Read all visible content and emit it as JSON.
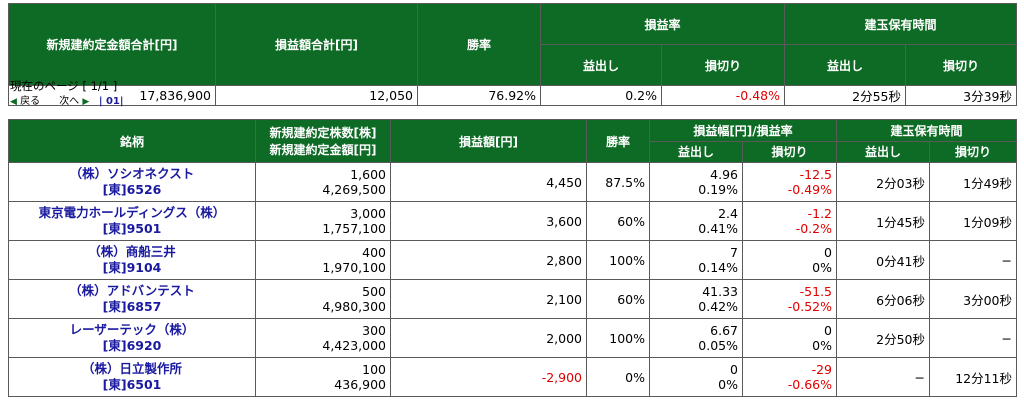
{
  "summary": {
    "headers": {
      "total_amount": "新規建約定金額合計[円]",
      "total_pnl": "損益額合計[円]",
      "win_rate": "勝率",
      "pnl_rate": "損益率",
      "hold_time": "建玉保有時間",
      "profit": "益出し",
      "loss": "損切り"
    },
    "values": {
      "total_amount": "17,836,900",
      "total_pnl": "12,050",
      "win_rate": "76.92%",
      "profit_rate": "0.2%",
      "loss_rate": "-0.48%",
      "profit_time": "2分55秒",
      "loss_time": "3分39秒"
    }
  },
  "pager": {
    "current": "現在のページ [ 1/1 ]",
    "back": "戻る",
    "next": "次へ",
    "pages": "| 01|"
  },
  "detail": {
    "headers": {
      "stock": "銘柄",
      "qty_amount_1": "新規建約定株数[株]",
      "qty_amount_2": "新規建約定金額[円]",
      "pnl": "損益額[円]",
      "win_rate": "勝率",
      "range_rate": "損益幅[円]/損益率",
      "hold_time": "建玉保有時間",
      "profit": "益出し",
      "loss": "損切り"
    },
    "rows": [
      {
        "name": "（株）ソシオネクスト",
        "code": "[東]6526",
        "qty": "1,600",
        "amount": "4,269,500",
        "pnl": "4,450",
        "win": "87.5%",
        "p_range": "4.96",
        "p_rate": "0.19%",
        "l_range": "-12.5",
        "l_rate": "-0.49%",
        "p_time": "2分03秒",
        "l_time": "1分49秒"
      },
      {
        "name": "東京電力ホールディングス（株）",
        "code": "[東]9501",
        "qty": "3,000",
        "amount": "1,757,100",
        "pnl": "3,600",
        "win": "60%",
        "p_range": "2.4",
        "p_rate": "0.41%",
        "l_range": "-1.2",
        "l_rate": "-0.2%",
        "p_time": "1分45秒",
        "l_time": "1分09秒"
      },
      {
        "name": "（株）商船三井",
        "code": "[東]9104",
        "qty": "400",
        "amount": "1,970,100",
        "pnl": "2,800",
        "win": "100%",
        "p_range": "7",
        "p_rate": "0.14%",
        "l_range": "0",
        "l_rate": "0%",
        "p_time": "0分41秒",
        "l_time": "−"
      },
      {
        "name": "（株）アドバンテスト",
        "code": "[東]6857",
        "qty": "500",
        "amount": "4,980,300",
        "pnl": "2,100",
        "win": "60%",
        "p_range": "41.33",
        "p_rate": "0.42%",
        "l_range": "-51.5",
        "l_rate": "-0.52%",
        "p_time": "6分06秒",
        "l_time": "3分00秒"
      },
      {
        "name": "レーザーテック（株）",
        "code": "[東]6920",
        "qty": "300",
        "amount": "4,423,000",
        "pnl": "2,000",
        "win": "100%",
        "p_range": "6.67",
        "p_rate": "0.05%",
        "l_range": "0",
        "l_rate": "0%",
        "p_time": "2分50秒",
        "l_time": "−"
      },
      {
        "name": "（株）日立製作所",
        "code": "[東]6501",
        "qty": "100",
        "amount": "436,900",
        "pnl": "-2,900",
        "win": "0%",
        "p_range": "0",
        "p_rate": "0%",
        "l_range": "-29",
        "l_rate": "-0.66%",
        "p_time": "−",
        "l_time": "12分11秒"
      }
    ]
  },
  "colors": {
    "header_bg": "#0e6b25",
    "negative": "#e10000",
    "stock_link": "#1a1aa0"
  }
}
